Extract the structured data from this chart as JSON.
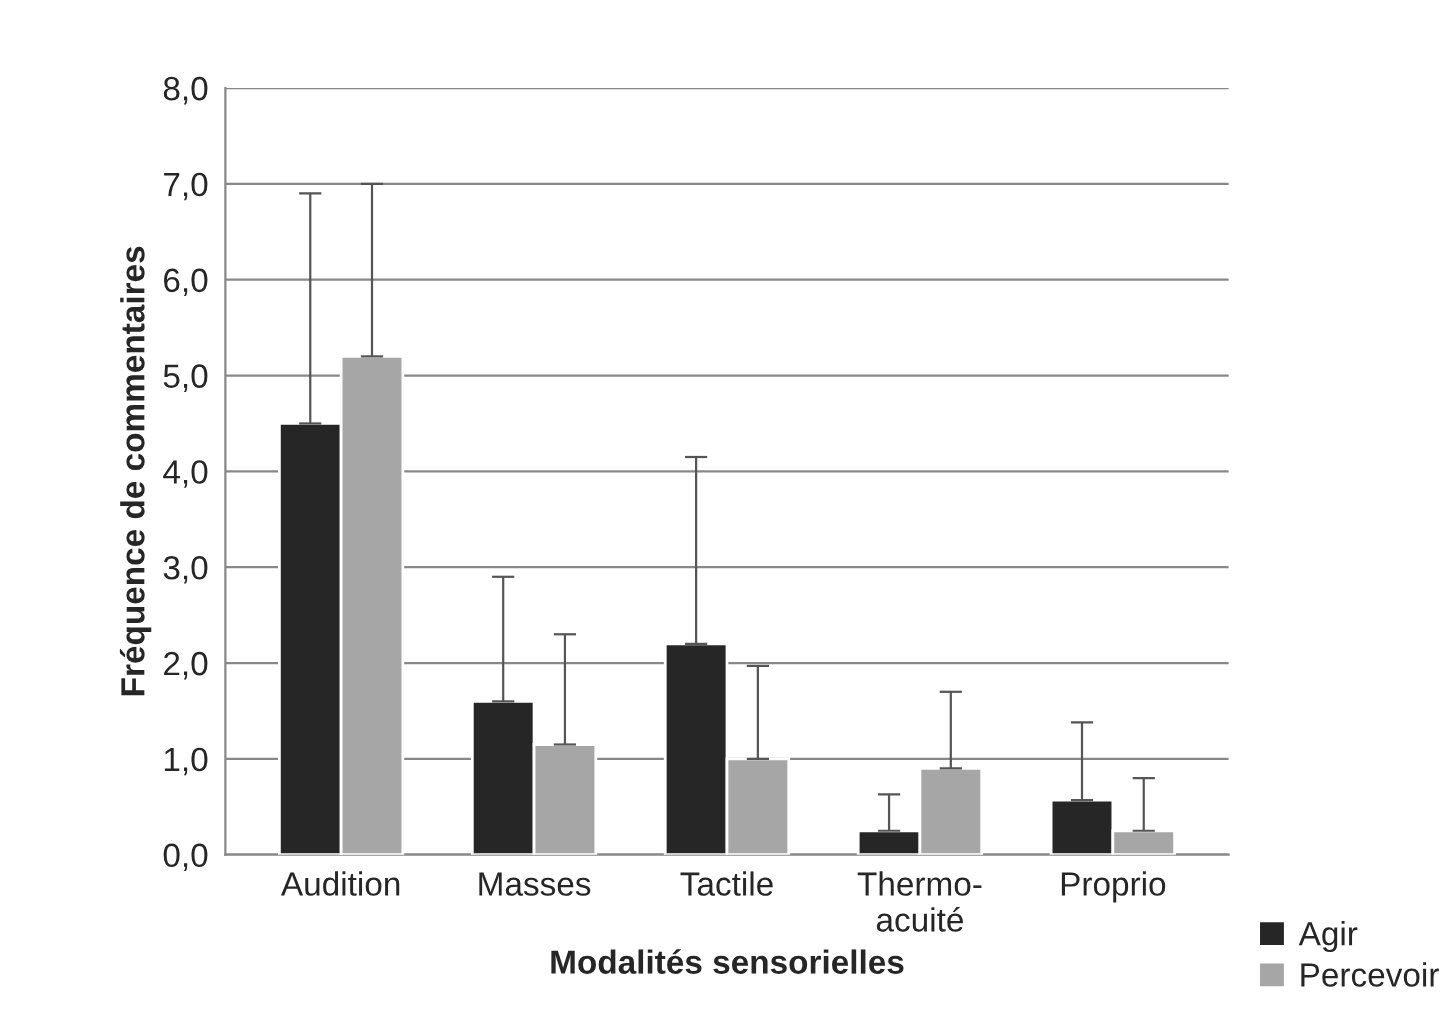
{
  "chart_data": {
    "type": "bar",
    "xlabel": "Modalités sensorielles",
    "ylabel": "Fréquence de commentaires",
    "categories": [
      "Audition",
      "Masses",
      "Tactile",
      "Thermo-\nacuité",
      "Proprio"
    ],
    "series": [
      {
        "name": "Agir",
        "color": "#262626",
        "values": [
          4.5,
          1.6,
          2.2,
          0.25,
          0.57
        ],
        "errors": [
          [
            4.5,
            6.9
          ],
          [
            1.6,
            2.9
          ],
          [
            2.2,
            4.15
          ],
          [
            0.25,
            0.63
          ],
          [
            0.57,
            1.38
          ]
        ]
      },
      {
        "name": "Percevoir",
        "color": "#a6a6a6",
        "values": [
          5.2,
          1.15,
          1.0,
          0.9,
          0.25
        ],
        "errors": [
          [
            5.2,
            7.0
          ],
          [
            1.15,
            2.3
          ],
          [
            1.0,
            1.97
          ],
          [
            0.9,
            1.7
          ],
          [
            0.25,
            0.8
          ]
        ]
      }
    ],
    "ylim": [
      0,
      8
    ],
    "yticks": [
      {
        "value": 0,
        "label": "0,0"
      },
      {
        "value": 1,
        "label": "1,0"
      },
      {
        "value": 2,
        "label": "2,0"
      },
      {
        "value": 3,
        "label": "3,0"
      },
      {
        "value": 4,
        "label": "4,0"
      },
      {
        "value": 5,
        "label": "5,0"
      },
      {
        "value": 6,
        "label": "6,0"
      },
      {
        "value": 7,
        "label": "7,0"
      },
      {
        "value": 8,
        "label": "8,0"
      }
    ],
    "grid": "y",
    "legend": "bottom right"
  }
}
